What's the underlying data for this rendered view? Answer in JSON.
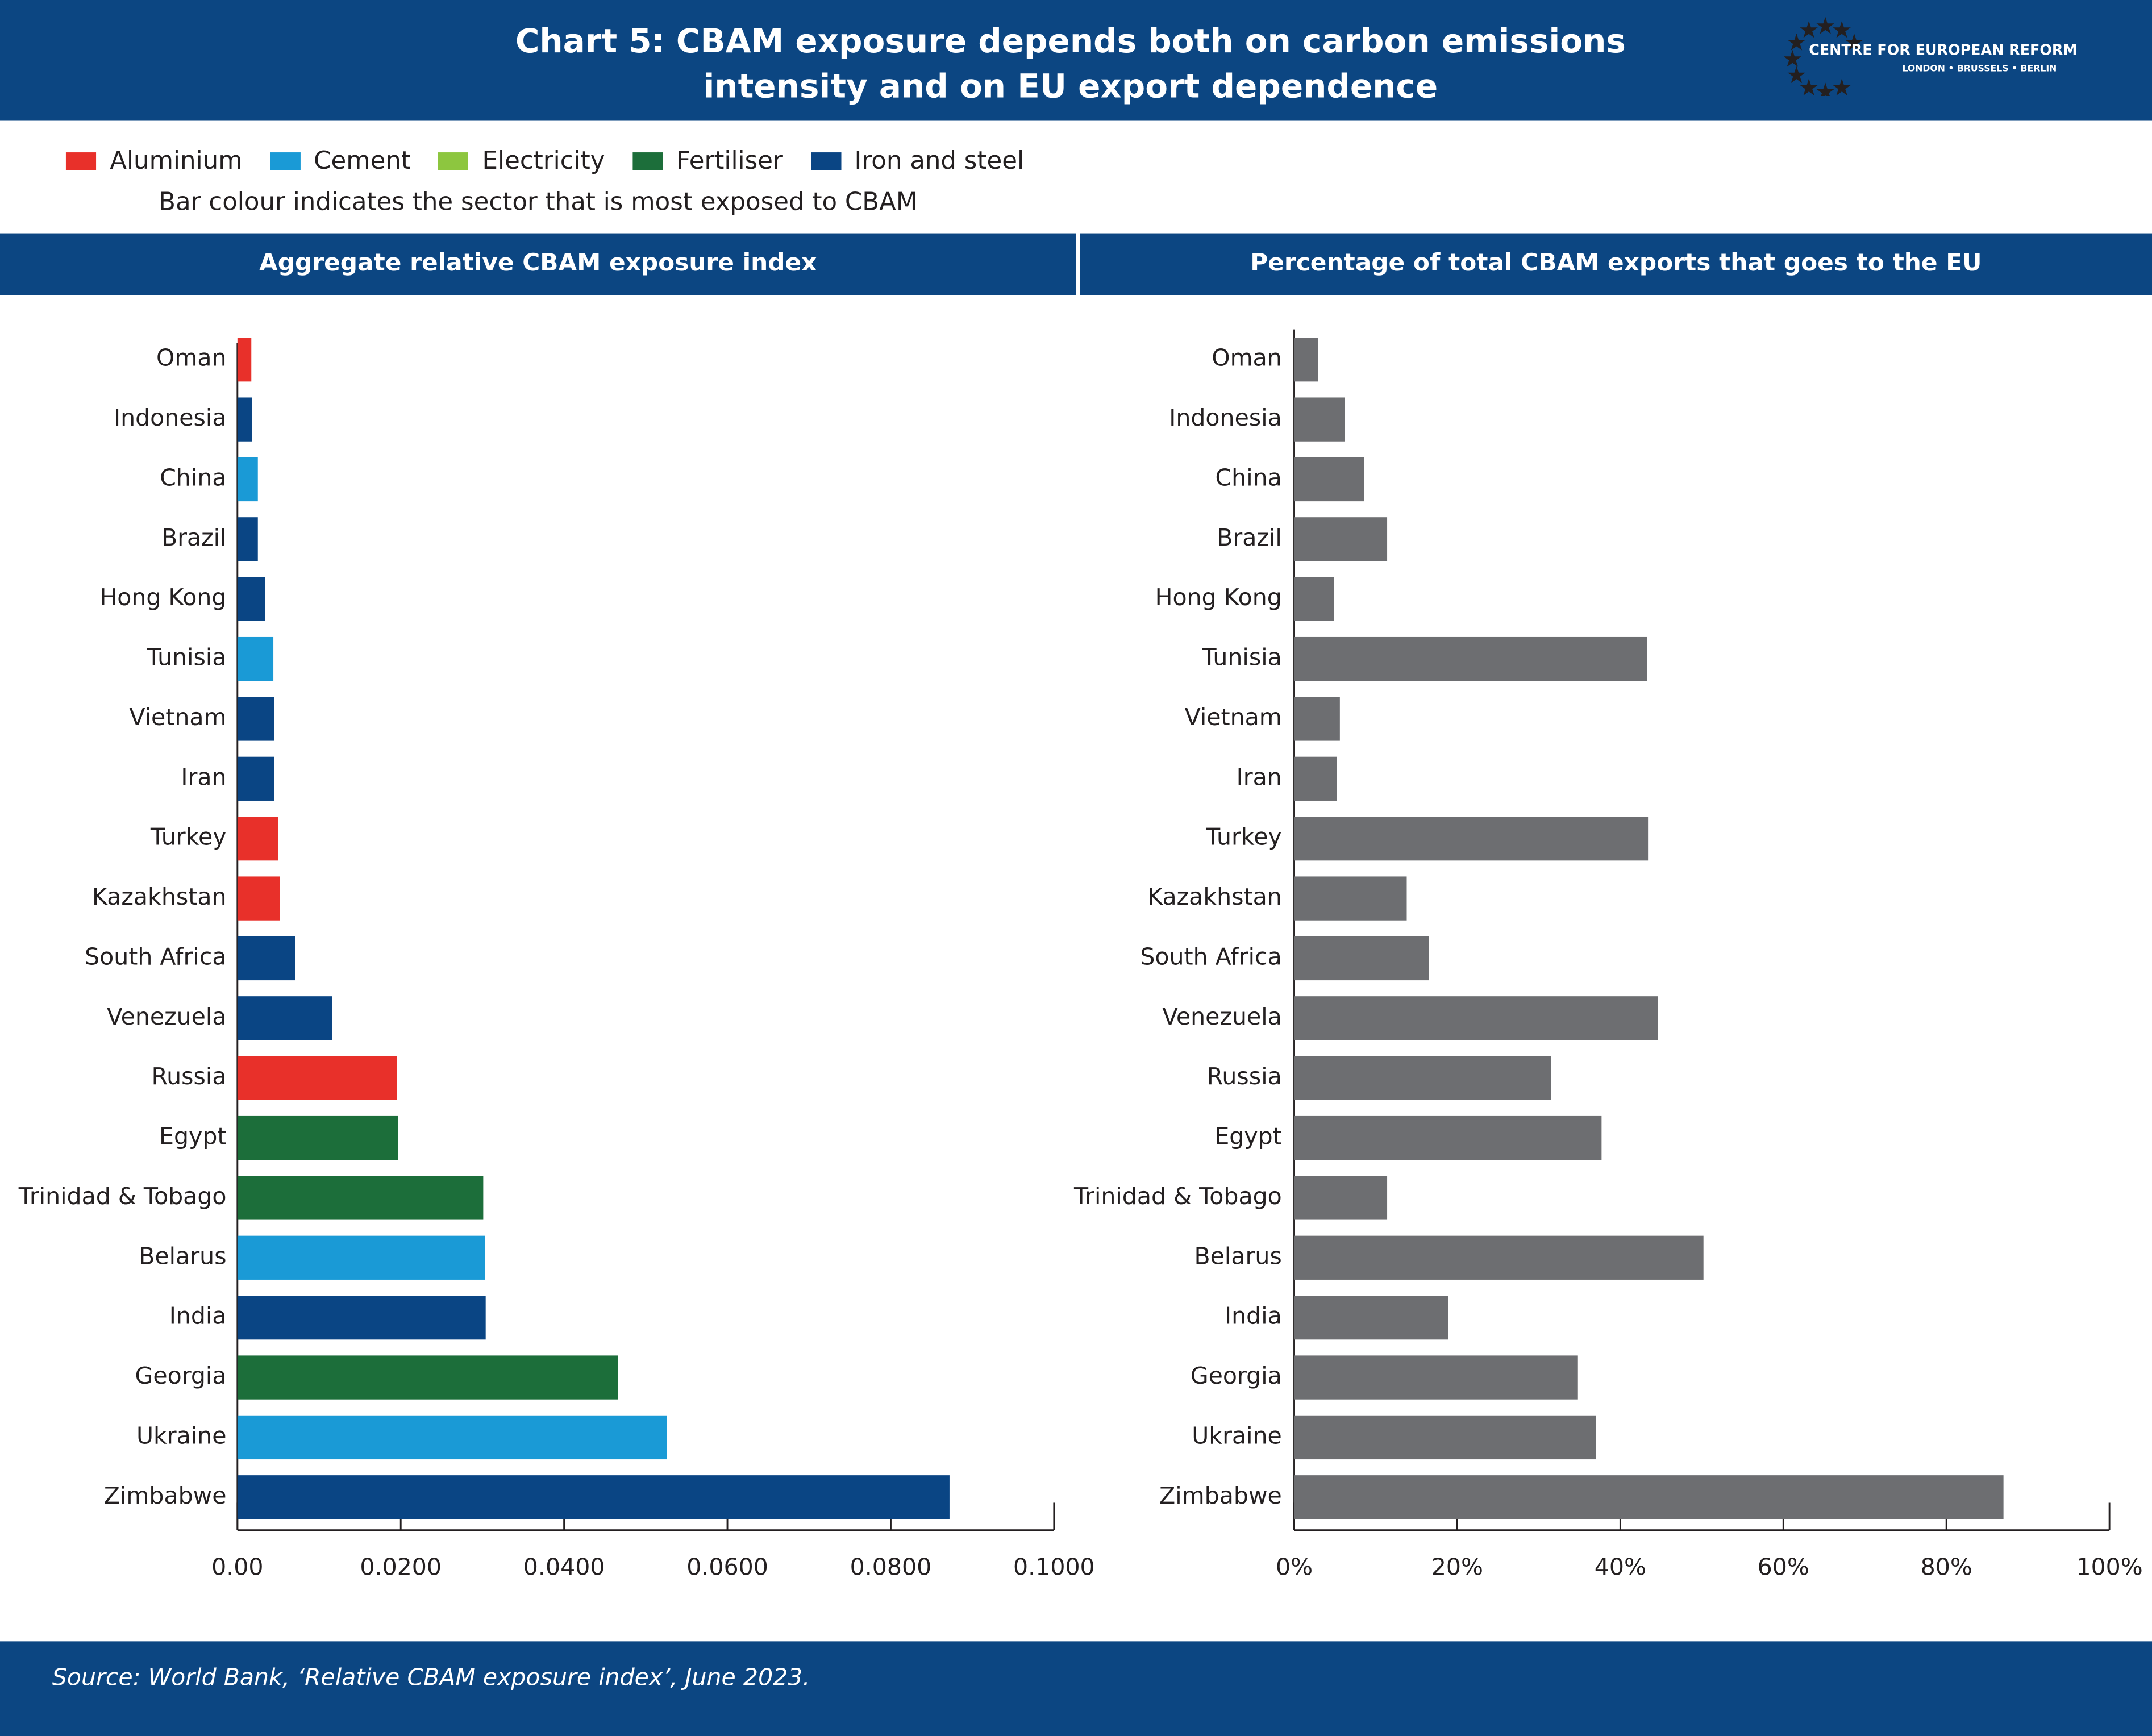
{
  "header": {
    "title": "Chart 5: CBAM exposure depends both on carbon emissions intensity and on EU export dependence",
    "logo_name": "CENTRE FOR EUROPEAN REFORM",
    "logo_cities": "LONDON • BRUSSELS • BERLIN"
  },
  "chart_data": [
    {
      "type": "barh",
      "title": "Aggregate relative CBAM exposure index",
      "legend": [
        {
          "name": "Aluminium",
          "color": "#e8302a"
        },
        {
          "name": "Cement",
          "color": "#1a9ad6"
        },
        {
          "name": "Electricity",
          "color": "#8dc63f"
        },
        {
          "name": "Fertiliser",
          "color": "#1c6e3a"
        },
        {
          "name": "Iron and steel",
          "color": "#0a4584"
        }
      ],
      "legend_note": "Bar colour indicates the sector that is most exposed to CBAM",
      "categories": [
        "Oman",
        "Indonesia",
        "China",
        "Brazil",
        "Hong Kong",
        "Tunisia",
        "Vietnam",
        "Iran",
        "Turkey",
        "Kazakhstan",
        "South Africa",
        "Venezuela",
        "Russia",
        "Egypt",
        "Trinidad & Tobago",
        "Belarus",
        "India",
        "Georgia",
        "Ukraine",
        "Zimbabwe"
      ],
      "values": [
        0.0017,
        0.0018,
        0.0025,
        0.0025,
        0.0034,
        0.0044,
        0.0045,
        0.0045,
        0.005,
        0.0052,
        0.0071,
        0.0116,
        0.0195,
        0.0197,
        0.0301,
        0.0303,
        0.0304,
        0.0466,
        0.0526,
        0.0872
      ],
      "colors": [
        "#e8302a",
        "#0a4584",
        "#1a9ad6",
        "#0a4584",
        "#0a4584",
        "#1a9ad6",
        "#0a4584",
        "#0a4584",
        "#e8302a",
        "#e8302a",
        "#0a4584",
        "#0a4584",
        "#e8302a",
        "#1c6e3a",
        "#1c6e3a",
        "#1a9ad6",
        "#0a4584",
        "#1c6e3a",
        "#1a9ad6",
        "#0a4584"
      ],
      "xlim": [
        0,
        0.1
      ],
      "xticks": [
        {
          "value": 0,
          "label": "0.00"
        },
        {
          "value": 0.02,
          "label": "0.0200"
        },
        {
          "value": 0.04,
          "label": "0.0400"
        },
        {
          "value": 0.06,
          "label": "0.0600"
        },
        {
          "value": 0.08,
          "label": "0.0800"
        },
        {
          "value": 0.1,
          "label": "0.1000"
        }
      ],
      "grid": false
    },
    {
      "type": "barh",
      "title": "Percentage of total CBAM exports that goes to the EU",
      "categories": [
        "Oman",
        "Indonesia",
        "China",
        "Brazil",
        "Hong Kong",
        "Tunisia",
        "Vietnam",
        "Iran",
        "Turkey",
        "Kazakhstan",
        "South Africa",
        "Venezuela",
        "Russia",
        "Egypt",
        "Trinidad & Tobago",
        "Belarus",
        "India",
        "Georgia",
        "Ukraine",
        "Zimbabwe"
      ],
      "values": [
        2.9,
        6.2,
        8.6,
        11.4,
        4.9,
        43.3,
        5.6,
        5.2,
        43.4,
        13.8,
        16.5,
        44.6,
        31.5,
        37.7,
        11.4,
        50.2,
        18.9,
        34.8,
        37.0,
        87.0
      ],
      "color": "#6d6e71",
      "xlim": [
        0,
        100
      ],
      "xticks": [
        {
          "value": 0,
          "label": "0%"
        },
        {
          "value": 20,
          "label": "20%"
        },
        {
          "value": 40,
          "label": "40%"
        },
        {
          "value": 60,
          "label": "60%"
        },
        {
          "value": 80,
          "label": "80%"
        },
        {
          "value": 100,
          "label": "100%"
        }
      ],
      "grid": false
    }
  ],
  "source": "Source: World Bank, ‘Relative CBAM exposure index’, June 2023."
}
